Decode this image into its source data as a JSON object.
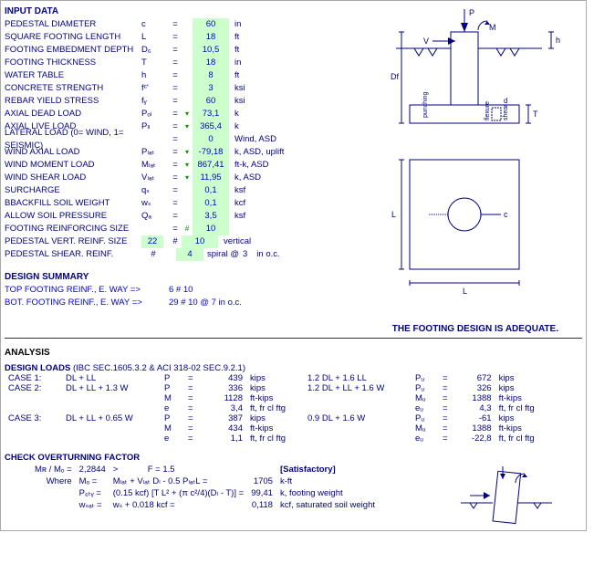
{
  "input_title": "INPUT DATA",
  "design_summary_title": "DESIGN SUMMARY",
  "analysis_title": "ANALYSIS",
  "design_loads_title": "DESIGN  LOADS",
  "design_loads_ref": "(IBC SEC.1605.3.2 & ACI 318-02 SEC.9.2.1)",
  "check_title": "CHECK OVERTURNING FACTOR",
  "adequate_text": "THE FOOTING DESIGN IS ADEQUATE.",
  "inputs": [
    {
      "label": "PEDESTAL DIAMETER",
      "sym": "c",
      "tri": "",
      "val": "60",
      "unit": "in"
    },
    {
      "label": "SQUARE FOOTING LENGTH",
      "sym": "L",
      "tri": "",
      "val": "18",
      "unit": "ft"
    },
    {
      "label": "FOOTING EMBEDMENT DEPTH",
      "sym": "D₆",
      "tri": "",
      "val": "10,5",
      "unit": "ft"
    },
    {
      "label": "FOOTING THICKNESS",
      "sym": "T",
      "tri": "",
      "val": "18",
      "unit": "in"
    },
    {
      "label": "WATER TABLE",
      "sym": "h",
      "tri": "",
      "val": "8",
      "unit": "ft"
    },
    {
      "label": "CONCRETE STRENGTH",
      "sym": "fᶜ'",
      "tri": "",
      "val": "3",
      "unit": "ksi"
    },
    {
      "label": "REBAR YIELD STRESS",
      "sym": "fᵧ",
      "tri": "",
      "val": "60",
      "unit": "ksi"
    },
    {
      "label": "AXIAL DEAD LOAD",
      "sym": "Pₒₗ",
      "tri": "▾",
      "val": "73,1",
      "unit": "k"
    },
    {
      "label": "AXIAL LIVE LOAD",
      "sym": "Pₗₗ",
      "tri": "▾",
      "val": "365,4",
      "unit": "k"
    },
    {
      "label": "LATERAL LOAD (0= WIND, 1= SEISMIC)",
      "sym": "",
      "tri": "",
      "val": "0",
      "unit": "Wind, ASD"
    },
    {
      "label": "WIND AXIAL LOAD",
      "sym": "Pₗₐₜ",
      "tri": "▾",
      "val": "-79,18",
      "unit": "k, ASD, uplift"
    },
    {
      "label": "WIND MOMENT LOAD",
      "sym": "Mₗₐₜ",
      "tri": "▾",
      "val": "867,41",
      "unit": "ft-k, ASD"
    },
    {
      "label": "WIND SHEAR LOAD",
      "sym": "Vₗₐₜ",
      "tri": "▾",
      "val": "11,95",
      "unit": "k, ASD"
    },
    {
      "label": "SURCHARGE",
      "sym": "qₛ",
      "tri": "",
      "val": "0,1",
      "unit": "ksf"
    },
    {
      "label": "BBACKFILL SOIL WEIGHT",
      "sym": "wₛ",
      "tri": "",
      "val": "0,1",
      "unit": "kcf"
    },
    {
      "label": "ALLOW SOIL PRESSURE",
      "sym": "Qₐ",
      "tri": "",
      "val": "3,5",
      "unit": "ksf"
    },
    {
      "label": "FOOTING REINFORCING SIZE",
      "sym": "",
      "tri": "#",
      "val": "10",
      "unit": ""
    }
  ],
  "pedestal_vert": {
    "label": "PEDESTAL VERT. REINF. SIZE",
    "pre": "22",
    "tri": "#",
    "val": "10",
    "unit": "vertical"
  },
  "pedestal_shear": {
    "label": "PEDESTAL SHEAR. REINF.",
    "sym": "#",
    "val": "4",
    "suffix": "spiral @",
    "num": "3",
    "unit2": "in o.c."
  },
  "summary": [
    {
      "label": "TOP FOOTING REINF., E. WAY =>",
      "val": "6 # 10"
    },
    {
      "label": "BOT. FOOTING REINF., E. WAY =>",
      "val": "29 # 10 @ 7 in o.c."
    }
  ],
  "cases_left": [
    {
      "case": "CASE 1:",
      "combo": "DL + LL",
      "sym": "P",
      "eq": "=",
      "val": "439",
      "unit": "kips"
    },
    {
      "case": "CASE 2:",
      "combo": "DL + LL + 1.3 W",
      "sym": "P",
      "eq": "=",
      "val": "336",
      "unit": "kips"
    },
    {
      "case": "",
      "combo": "",
      "sym": "M",
      "eq": "=",
      "val": "1128",
      "unit": "ft-kips"
    },
    {
      "case": "",
      "combo": "",
      "sym": "e",
      "eq": "=",
      "val": "3,4",
      "unit": "ft, fr cl ftg"
    },
    {
      "case": "CASE 3:",
      "combo": "DL + LL + 0.65 W",
      "sym": "P",
      "eq": "=",
      "val": "387",
      "unit": "kips"
    },
    {
      "case": "",
      "combo": "",
      "sym": "M",
      "eq": "=",
      "val": "434",
      "unit": "ft-kips"
    },
    {
      "case": "",
      "combo": "",
      "sym": "e",
      "eq": "=",
      "val": "1,1",
      "unit": "ft, fr cl ftg"
    }
  ],
  "cases_mid": [
    "1.2 DL + 1.6 LL",
    "1.2 DL + LL + 1.6 W",
    "",
    "",
    "0.9 DL + 1.6 W",
    "",
    ""
  ],
  "cases_right": [
    {
      "sym": "Pᵤ",
      "val": "672",
      "unit": "kips"
    },
    {
      "sym": "Pᵤ",
      "val": "326",
      "unit": "kips"
    },
    {
      "sym": "Mᵤ",
      "val": "1388",
      "unit": "ft-kips"
    },
    {
      "sym": "eᵤ",
      "val": "4,3",
      "unit": "ft, fr cl ftg"
    },
    {
      "sym": "Pᵤ",
      "val": "-61",
      "unit": "kips"
    },
    {
      "sym": "Mᵤ",
      "val": "1388",
      "unit": "ft-kips"
    },
    {
      "sym": "eᵤ",
      "val": "-22,8",
      "unit": "ft, fr cl ftg"
    }
  ],
  "overturn": {
    "ratio_lbl": "Mʀ / Mₒ  =",
    "ratio": "2,2844",
    "gt": ">",
    "f": "F = 1.5",
    "sat": "[Satisfactory]",
    "where": "Where",
    "mo_lbl": "Mₒ =",
    "mo_expr": "Mₗₐₜ + Vₗₐₜ Dₗ - 0.5 PₗₐₜL =",
    "mo_val": "1705",
    "mo_unit": "k-ft",
    "pftg_lbl": "P₆ₜᵧ =",
    "pftg_expr": "(0.15 kcf) [T L² + (π c²/4)(Dₗ - T)] =",
    "pftg_val": "99,41",
    "pftg_unit": "k, footing weight",
    "wsat_lbl": "wₛₐₜ =",
    "wsat_expr": "wₛ + 0.018 kcf =",
    "wsat_val": "0,118",
    "wsat_unit": "kcf, saturated soil weight"
  }
}
